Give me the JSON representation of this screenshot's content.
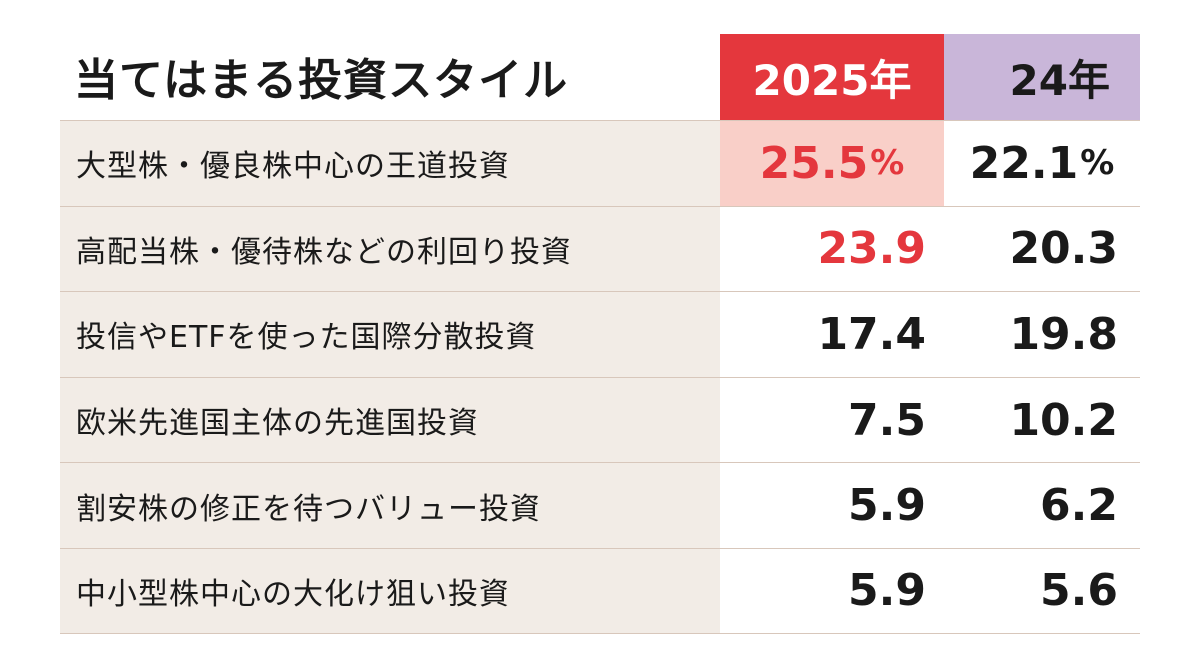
{
  "chart_data": {
    "type": "table",
    "title": "当てはまる投資スタイル",
    "columns": [
      "2025年",
      "24年"
    ],
    "categories": [
      "大型株・優良株中心の王道投資",
      "高配当株・優待株などの利回り投資",
      "投信やETFを使った国際分散投資",
      "欧米先進国主体の先進国投資",
      "割安株の修正を待つバリュー投資",
      "中小型株中心の大化け狙い投資"
    ],
    "series": [
      {
        "name": "2025年",
        "values": [
          25.5,
          23.9,
          17.4,
          7.5,
          5.9,
          5.9
        ],
        "display": [
          "25.5",
          "23.9",
          "17.4",
          "7.5",
          "5.9",
          "5.9"
        ]
      },
      {
        "name": "24年",
        "values": [
          22.1,
          20.3,
          19.8,
          10.2,
          6.2,
          5.6
        ],
        "display": [
          "22.1",
          "20.3",
          "19.8",
          "10.2",
          "6.2",
          "5.6"
        ]
      }
    ],
    "unit_suffix": "%",
    "colors": {
      "accent_red": "#e4373d",
      "header_purple": "#c9b6d9",
      "highlight_pink": "#f9cfc8",
      "label_bg": "#f2ece6"
    }
  }
}
